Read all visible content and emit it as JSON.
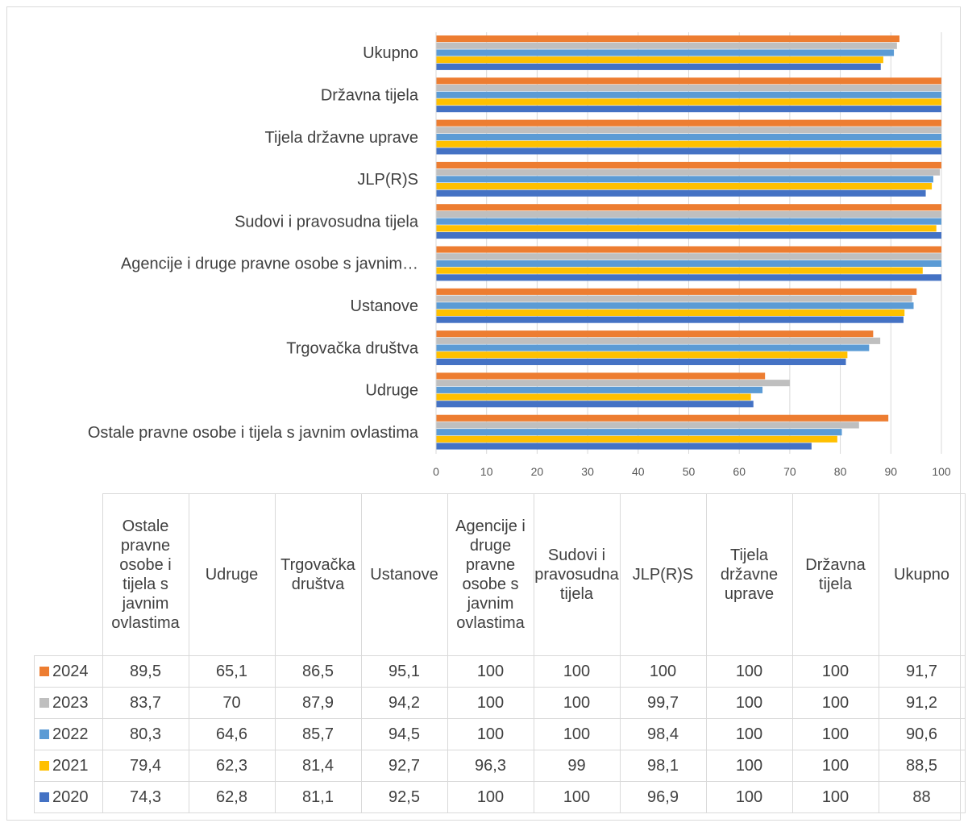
{
  "chart_data": {
    "type": "bar",
    "orientation": "horizontal",
    "categories": [
      "Ostale pravne osobe i tijela s javnim ovlastima",
      "Udruge",
      "Trgovačka društva",
      "Ustanove",
      "Agencije i druge pravne osobe s javnim ovlastima",
      "Sudovi i pravosudna tijela",
      "JLP(R)S",
      "Tijela državne uprave",
      "Državna tijela",
      "Ukupno"
    ],
    "axis_category_labels": [
      "Ostale pravne osobe i tijela s javnim ovlastima",
      "Udruge",
      "Trgovačka društva",
      "Ustanove",
      "Agencije i druge pravne osobe s javnim…",
      "Sudovi i pravosudna tijela",
      "JLP(R)S",
      "Tijela državne uprave",
      "Državna tijela",
      "Ukupno"
    ],
    "series": [
      {
        "name": "2024",
        "color": "#ed7d31",
        "values": [
          89.5,
          65.1,
          86.5,
          95.1,
          100,
          100,
          100,
          100,
          100,
          91.7
        ],
        "labels": [
          "89,5",
          "65,1",
          "86,5",
          "95,1",
          "100",
          "100",
          "100",
          "100",
          "100",
          "91,7"
        ]
      },
      {
        "name": "2023",
        "color": "#bfbfbf",
        "values": [
          83.7,
          70,
          87.9,
          94.2,
          100,
          100,
          99.7,
          100,
          100,
          91.2
        ],
        "labels": [
          "83,7",
          "70",
          "87,9",
          "94,2",
          "100",
          "100",
          "99,7",
          "100",
          "100",
          "91,2"
        ]
      },
      {
        "name": "2022",
        "color": "#5b9bd5",
        "values": [
          80.3,
          64.6,
          85.7,
          94.5,
          100,
          100,
          98.4,
          100,
          100,
          90.6
        ],
        "labels": [
          "80,3",
          "64,6",
          "85,7",
          "94,5",
          "100",
          "100",
          "98,4",
          "100",
          "100",
          "90,6"
        ]
      },
      {
        "name": "2021",
        "color": "#ffc000",
        "values": [
          79.4,
          62.3,
          81.4,
          92.7,
          96.3,
          99,
          98.1,
          100,
          100,
          88.5
        ],
        "labels": [
          "79,4",
          "62,3",
          "81,4",
          "92,7",
          "96,3",
          "99",
          "98,1",
          "100",
          "100",
          "88,5"
        ]
      },
      {
        "name": "2020",
        "color": "#4472c4",
        "values": [
          74.3,
          62.8,
          81.1,
          92.5,
          100,
          100,
          96.9,
          100,
          100,
          88
        ],
        "labels": [
          "74,3",
          "62,8",
          "81,1",
          "92,5",
          "100",
          "100",
          "96,9",
          "100",
          "100",
          "88"
        ]
      }
    ],
    "xlim": [
      0,
      100
    ],
    "xticks": [
      "0",
      "10",
      "20",
      "30",
      "40",
      "50",
      "60",
      "70",
      "80",
      "90",
      "100"
    ],
    "grid": "vertical",
    "legend": "data-table"
  }
}
